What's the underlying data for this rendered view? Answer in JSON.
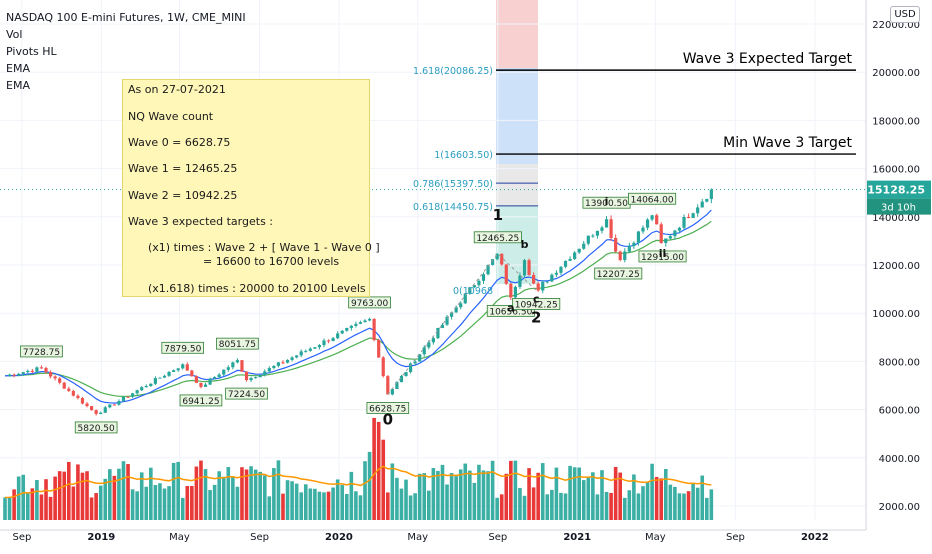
{
  "header": {
    "title": "NASDAQ 100 E-mini Futures, 1W, CME_MINI",
    "indicators": [
      "Vol",
      "Pivots HL",
      "EMA",
      "EMA"
    ]
  },
  "currency_badge": "USD",
  "note": {
    "lines": [
      "As on 27-07-2021",
      "NQ Wave count",
      "Wave 0 = 6628.75",
      "Wave 1 = 12465.25",
      "Wave 2 = 10942.25",
      "Wave 3 expected targets :",
      "(x1) times : Wave 2 + [ Wave 1 - Wave 0 ]",
      "= 16600 to 16700 levels",
      "(x1.618) times : 20000 to 20100 Levels"
    ]
  },
  "colors": {
    "up": "#26a69a",
    "down": "#ef5350",
    "vol_up": "#26a69a",
    "vol_down": "#e52222",
    "ema_fast": "#2962ff",
    "ema_slow": "#4caf50",
    "vol_ma": "#ff9800",
    "pivot_fill": "#e8f5e0",
    "pivot_border": "#2e7d32",
    "fib_text": "#2a9dbf",
    "grid": "#f0f3fa"
  },
  "chart_data": {
    "type": "candlestick",
    "title": "NASDAQ 100 E-mini Futures, 1W, CME_MINI",
    "y_axis": {
      "ticks": [
        "22000.00",
        "20000.00",
        "18000.00",
        "16000.00",
        "14000.00",
        "12000.00",
        "10000.00",
        "8000.00",
        "6000.00",
        "4000.00",
        "2000.00"
      ],
      "last_price": "15128.25",
      "countdown": "3d 10h"
    },
    "x_axis": {
      "ticks": [
        "Sep",
        "2019",
        "May",
        "Sep",
        "2020",
        "May",
        "Sep",
        "2021",
        "May",
        "Sep",
        "2022"
      ]
    },
    "ohlc_anchors": [
      {
        "date": "2018-08-06",
        "value": 7400
      },
      {
        "date": "2018-10-01",
        "value": 7728.75
      },
      {
        "date": "2018-12-24",
        "value": 5820.5
      },
      {
        "date": "2019-05-06",
        "value": 7879.5
      },
      {
        "date": "2019-06-03",
        "value": 6941.25
      },
      {
        "date": "2019-07-29",
        "value": 8051.75
      },
      {
        "date": "2019-08-12",
        "value": 7224.5
      },
      {
        "date": "2020-02-17",
        "value": 9763.0
      },
      {
        "date": "2020-03-16",
        "value": 6628.75
      },
      {
        "date": "2020-09-01",
        "value": 12465.25
      },
      {
        "date": "2020-09-21",
        "value": 10656.5
      },
      {
        "date": "2020-10-12",
        "value": 12200
      },
      {
        "date": "2020-10-30",
        "value": 10942.25
      },
      {
        "date": "2021-02-15",
        "value": 13900.5
      },
      {
        "date": "2021-03-05",
        "value": 12207.25
      },
      {
        "date": "2021-04-26",
        "value": 14064.0
      },
      {
        "date": "2021-05-12",
        "value": 12915.0
      },
      {
        "date": "2021-07-27",
        "value": 15128.25
      }
    ],
    "pivot_labels": [
      "7728.75",
      "5820.50",
      "7879.50",
      "6941.25",
      "8051.75",
      "7224.50",
      "9763.00",
      "6628.75",
      "12465.25",
      "10656.50",
      "10942.25",
      "13900.50",
      "12207.25",
      "14064.00",
      "12915.00"
    ],
    "fib_levels": [
      {
        "label": "1.618(20086.25)",
        "value": 20086.25
      },
      {
        "label": "1(16603.50)",
        "value": 16603.5
      },
      {
        "label": "0.786(15397.50)",
        "value": 15397.5
      },
      {
        "label": "0.618(14450.75)",
        "value": 14450.75
      },
      {
        "label": "0(10968",
        "value": 10968
      }
    ],
    "target_lines": [
      {
        "label": "Wave 3 Expected Target",
        "value": 20086.25
      },
      {
        "label": "Min Wave 3 Target",
        "value": 16603.5
      }
    ],
    "wave_labels": [
      {
        "text": "0",
        "anchor": "6628.75"
      },
      {
        "text": "1",
        "anchor": "12465.25"
      },
      {
        "text": "2",
        "anchor": "10942.25"
      },
      {
        "text": "a",
        "anchor": "10656.50"
      },
      {
        "text": "b",
        "anchor": "12200"
      },
      {
        "text": "c",
        "anchor": "10942.25"
      },
      {
        "text": "i",
        "anchor": "13900.50"
      },
      {
        "text": "ii",
        "anchor": "12915.00"
      }
    ],
    "grid": true
  }
}
